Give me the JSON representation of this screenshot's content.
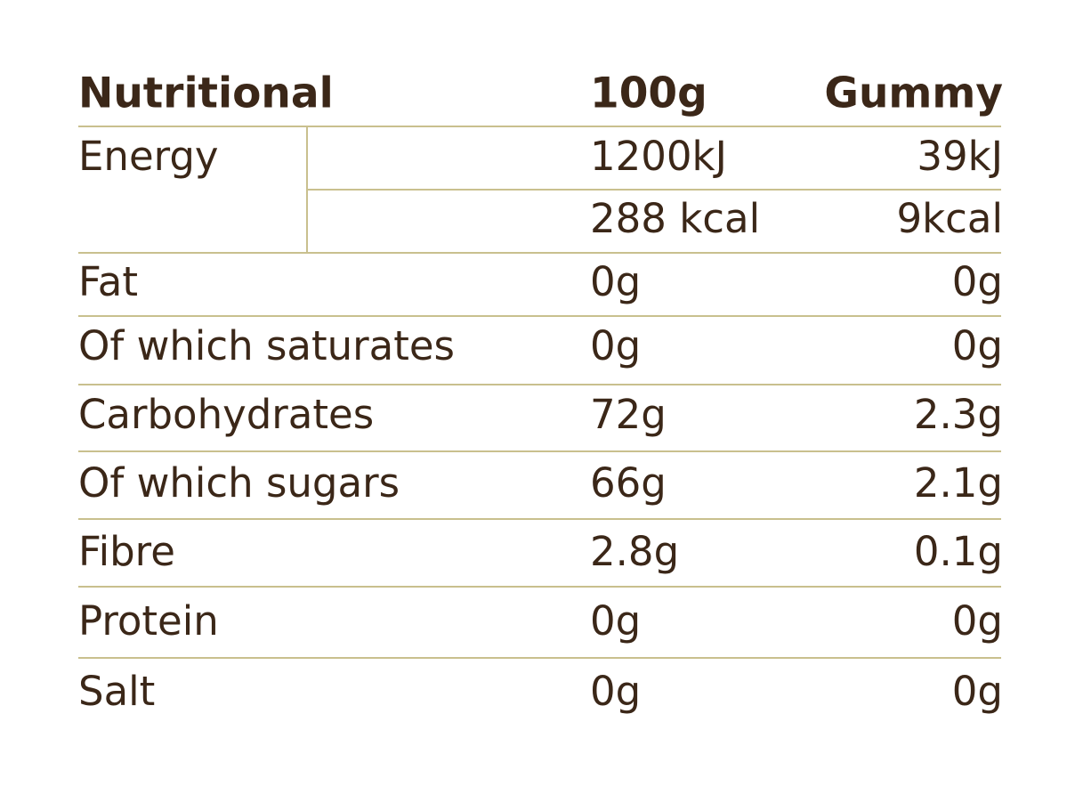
{
  "table": {
    "header": [
      "Nutritional",
      "100g",
      "Gummy"
    ],
    "energy": {
      "label": "Energy",
      "values": [
        [
          "1200kJ",
          "39kJ"
        ],
        [
          "288 kcal",
          "9kcal"
        ]
      ]
    },
    "rows": [
      [
        "Fat",
        "0g",
        "0g"
      ],
      [
        "Of which saturates",
        "0g",
        "0g"
      ],
      [
        "Carbohydrates",
        "72g",
        "2.3g"
      ],
      [
        "Of which sugars",
        "66g",
        "2.1g"
      ],
      [
        "Fibre",
        "2.8g",
        "0.1g"
      ],
      [
        "Protein",
        "0g",
        "0g"
      ],
      [
        "Salt",
        "0g",
        "0g"
      ]
    ]
  }
}
